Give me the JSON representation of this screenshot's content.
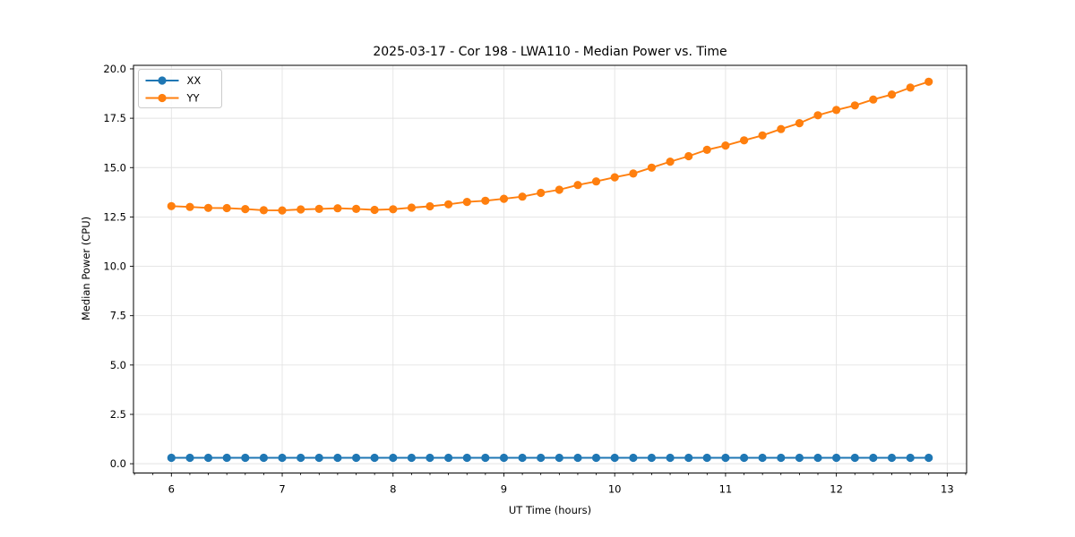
{
  "chart_data": {
    "type": "line",
    "title": "2025-03-17 - Cor 198 - LWA110 - Median Power vs. Time",
    "xlabel": "UT Time (hours)",
    "ylabel": "Median Power (CPU)",
    "xlim": [
      5.658,
      13.175
    ],
    "ylim": [
      -0.47,
      20.18
    ],
    "x_ticks": [
      6,
      7,
      8,
      9,
      10,
      11,
      12,
      13
    ],
    "x_minor_tick_step": 0.1667,
    "y_ticks": [
      0.0,
      2.5,
      5.0,
      7.5,
      10.0,
      12.5,
      15.0,
      17.5,
      20.0
    ],
    "grid": true,
    "legend_position": "upper-left",
    "colors": {
      "background": "#ffffff",
      "grid": "#e3e3e3",
      "spine": "#000000",
      "tick_text": "#000000",
      "legend_edge": "#cccccc"
    },
    "x": [
      6.0,
      6.167,
      6.333,
      6.5,
      6.667,
      6.833,
      7.0,
      7.167,
      7.333,
      7.5,
      7.667,
      7.833,
      8.0,
      8.167,
      8.333,
      8.5,
      8.667,
      8.833,
      9.0,
      9.167,
      9.333,
      9.5,
      9.667,
      9.833,
      10.0,
      10.167,
      10.333,
      10.5,
      10.667,
      10.833,
      11.0,
      11.167,
      11.333,
      11.5,
      11.667,
      11.833,
      12.0,
      12.167,
      12.333,
      12.5,
      12.667,
      12.833
    ],
    "series": [
      {
        "name": "XX",
        "color": "#1f77b4",
        "values": [
          0.3,
          0.3,
          0.3,
          0.3,
          0.3,
          0.3,
          0.3,
          0.3,
          0.3,
          0.3,
          0.3,
          0.3,
          0.3,
          0.3,
          0.3,
          0.3,
          0.3,
          0.3,
          0.3,
          0.3,
          0.3,
          0.3,
          0.3,
          0.3,
          0.3,
          0.3,
          0.3,
          0.3,
          0.3,
          0.3,
          0.3,
          0.3,
          0.3,
          0.3,
          0.3,
          0.3,
          0.3,
          0.3,
          0.3,
          0.3,
          0.3,
          0.3
        ]
      },
      {
        "name": "YY",
        "color": "#ff7f0e",
        "values": [
          13.05,
          13.01,
          12.96,
          12.95,
          12.9,
          12.84,
          12.83,
          12.88,
          12.91,
          12.94,
          12.91,
          12.86,
          12.89,
          12.97,
          13.04,
          13.14,
          13.26,
          13.32,
          13.42,
          13.53,
          13.72,
          13.88,
          14.12,
          14.3,
          14.51,
          14.7,
          15.0,
          15.3,
          15.58,
          15.9,
          16.12,
          16.38,
          16.63,
          16.95,
          17.25,
          17.65,
          17.92,
          18.15,
          18.45,
          18.7,
          19.05,
          19.35
        ]
      }
    ]
  }
}
